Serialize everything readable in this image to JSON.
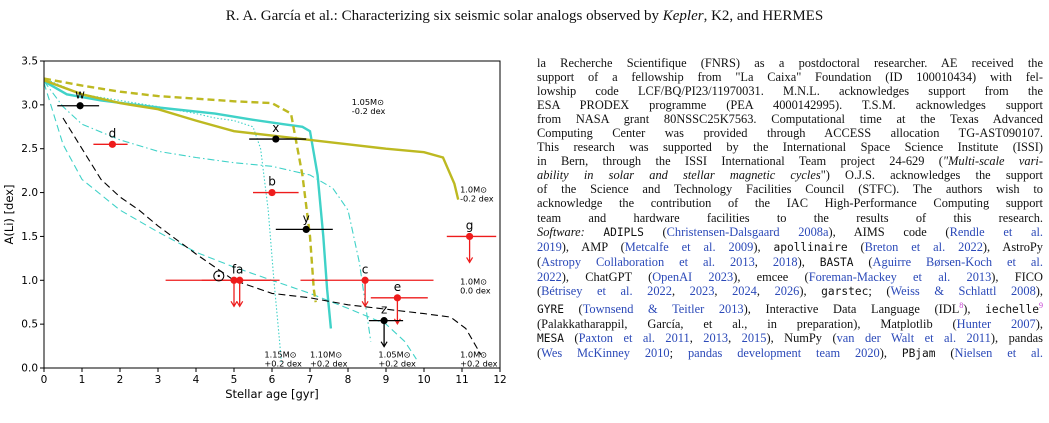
{
  "header": {
    "authors": "R. A. García et al.: Characterizing six seismic solar analogs observed by ",
    "kepler": "Kepler",
    "mid": ", K2, and HERMES"
  },
  "chart_data": {
    "type": "line",
    "xlabel": "Stellar age [gyr]",
    "ylabel": "A(Li) [dex]",
    "xlim": [
      0,
      12
    ],
    "ylim": [
      0,
      3.5
    ],
    "xticks": [
      "0",
      "1",
      "2",
      "3",
      "4",
      "5",
      "6",
      "7",
      "8",
      "9",
      "10",
      "11",
      "12"
    ],
    "yticks": [
      "0.0",
      "0.5",
      "1.0",
      "1.5",
      "2.0",
      "2.5",
      "3.0",
      "3.5"
    ],
    "colors": {
      "cyan": "#40d2c8",
      "olive": "#bdb921",
      "black": "#000000",
      "red": "#ee1c1c"
    },
    "tracks": [
      {
        "id": "cyan-solid",
        "color": "#40d2c8",
        "style": "solid",
        "width": 2.4,
        "points": [
          [
            0,
            3.27
          ],
          [
            0.6,
            3.12
          ],
          [
            1.5,
            3.05
          ],
          [
            3,
            2.97
          ],
          [
            4.5,
            2.9
          ],
          [
            5.5,
            2.83
          ],
          [
            6.3,
            2.78
          ],
          [
            6.8,
            2.75
          ],
          [
            7.0,
            2.7
          ],
          [
            7.2,
            2.2
          ],
          [
            7.35,
            1.5
          ],
          [
            7.45,
            0.9
          ],
          [
            7.55,
            0.45
          ]
        ]
      },
      {
        "id": "cyan-dashdot",
        "color": "#40d2c8",
        "style": "dashdot",
        "width": 1.1,
        "points": [
          [
            0,
            3.27
          ],
          [
            0.5,
            2.98
          ],
          [
            1,
            2.78
          ],
          [
            2,
            2.6
          ],
          [
            3,
            2.47
          ],
          [
            4,
            2.4
          ],
          [
            5,
            2.34
          ],
          [
            6,
            2.3
          ],
          [
            7,
            2.2
          ],
          [
            7.6,
            2.05
          ],
          [
            8.0,
            1.8
          ],
          [
            8.3,
            1.2
          ],
          [
            8.5,
            0.6
          ],
          [
            8.6,
            0.3
          ]
        ]
      },
      {
        "id": "cyan-dotted",
        "color": "#40d2c8",
        "style": "dotted",
        "width": 1.1,
        "points": [
          [
            0,
            3.3
          ],
          [
            1,
            3.12
          ],
          [
            2,
            3.05
          ],
          [
            3,
            2.98
          ],
          [
            4,
            2.9
          ],
          [
            4.5,
            2.85
          ],
          [
            5,
            2.82
          ],
          [
            5.5,
            2.75
          ],
          [
            5.7,
            2.5
          ],
          [
            5.9,
            1.8
          ],
          [
            6.05,
            1.0
          ],
          [
            6.2,
            0.3
          ],
          [
            6.25,
            0.05
          ]
        ]
      },
      {
        "id": "cyan-dashed",
        "color": "#40d2c8",
        "style": "dashed",
        "width": 1.1,
        "points": [
          [
            0,
            3.25
          ],
          [
            0.5,
            2.55
          ],
          [
            1,
            2.15
          ],
          [
            2,
            1.8
          ],
          [
            3,
            1.55
          ],
          [
            4,
            1.32
          ],
          [
            5,
            1.15
          ],
          [
            6,
            1.0
          ],
          [
            7,
            0.85
          ],
          [
            8,
            0.68
          ],
          [
            9,
            0.5
          ],
          [
            9.5,
            0.3
          ],
          [
            9.8,
            0.1
          ]
        ]
      },
      {
        "id": "olive-solid",
        "color": "#bdb921",
        "style": "solid",
        "width": 2.4,
        "points": [
          [
            0,
            3.28
          ],
          [
            1,
            3.12
          ],
          [
            2,
            3.02
          ],
          [
            3,
            2.95
          ],
          [
            4,
            2.82
          ],
          [
            5,
            2.7
          ],
          [
            6,
            2.65
          ],
          [
            7,
            2.6
          ],
          [
            8,
            2.55
          ],
          [
            9,
            2.5
          ],
          [
            10,
            2.46
          ],
          [
            10.5,
            2.4
          ],
          [
            10.8,
            2.1
          ],
          [
            10.9,
            1.92
          ]
        ]
      },
      {
        "id": "olive-dashed",
        "color": "#bdb921",
        "style": "dashed",
        "width": 2.4,
        "points": [
          [
            0,
            3.3
          ],
          [
            1,
            3.22
          ],
          [
            2,
            3.15
          ],
          [
            3,
            3.1
          ],
          [
            4,
            3.07
          ],
          [
            5,
            3.04
          ],
          [
            6,
            3.02
          ],
          [
            6.5,
            2.9
          ],
          [
            6.8,
            2.2
          ],
          [
            7.0,
            1.5
          ],
          [
            7.1,
            0.9
          ],
          [
            7.15,
            0.75
          ]
        ]
      },
      {
        "id": "black-dashed",
        "color": "#000000",
        "style": "dashed",
        "width": 1.1,
        "points": [
          [
            0.5,
            2.85
          ],
          [
            1,
            2.5
          ],
          [
            1.5,
            2.15
          ],
          [
            2,
            1.95
          ],
          [
            2.5,
            1.8
          ],
          [
            3,
            1.62
          ],
          [
            4,
            1.3
          ],
          [
            5,
            1.0
          ],
          [
            6,
            0.85
          ],
          [
            7,
            0.8
          ],
          [
            8,
            0.72
          ],
          [
            9,
            0.67
          ],
          [
            10,
            0.62
          ],
          [
            10.7,
            0.58
          ],
          [
            11.1,
            0.45
          ],
          [
            11.3,
            0.3
          ],
          [
            11.5,
            0.15
          ]
        ]
      }
    ],
    "sun": {
      "x": 4.6,
      "y": 1.05
    },
    "stars": [
      {
        "label": "w",
        "x": 0.95,
        "y": 2.99,
        "xerr": [
          0.6,
          0.5
        ],
        "color": "#000000",
        "arrow": false
      },
      {
        "label": "d",
        "x": 1.8,
        "y": 2.55,
        "xerr": [
          0.5,
          0.4
        ],
        "color": "#ee1c1c",
        "arrow": false
      },
      {
        "label": "x",
        "x": 6.1,
        "y": 2.61,
        "xerr": [
          0.7,
          0.8
        ],
        "color": "#000000",
        "arrow": false
      },
      {
        "label": "b",
        "x": 6.0,
        "y": 2.0,
        "xerr": [
          0.5,
          0.7
        ],
        "color": "#ee1c1c",
        "arrow": false
      },
      {
        "label": "y",
        "x": 6.9,
        "y": 1.58,
        "xerr": [
          0.8,
          0.7
        ],
        "color": "#000000",
        "arrow": false
      },
      {
        "label": "g",
        "x": 11.2,
        "y": 1.5,
        "xerr": [
          0.6,
          0.7
        ],
        "color": "#ee1c1c",
        "arrow": true
      },
      {
        "label": "f",
        "x": 5.0,
        "y": 1.0,
        "xerr": [
          1.8,
          1.2
        ],
        "color": "#ee1c1c",
        "arrow": true
      },
      {
        "label": "a",
        "x": 5.15,
        "y": 1.0,
        "xerr": [
          1.0,
          0.8
        ],
        "color": "#ee1c1c",
        "arrow": true
      },
      {
        "label": "c",
        "x": 8.45,
        "y": 1.0,
        "xerr": [
          1.7,
          1.8
        ],
        "color": "#ee1c1c",
        "arrow": true
      },
      {
        "label": "e",
        "x": 9.3,
        "y": 0.8,
        "xerr": [
          0.7,
          0.8
        ],
        "color": "#ee1c1c",
        "arrow": true
      },
      {
        "label": "z",
        "x": 8.95,
        "y": 0.54,
        "xerr": [
          0.4,
          0.5
        ],
        "color": "#000000",
        "arrow": true
      }
    ],
    "track_labels": [
      {
        "line1": "1.05M⊙",
        "line2": "-0.2 dex",
        "x": 8.1,
        "y": 3.0
      },
      {
        "line1": "1.0M⊙",
        "line2": "-0.2 dex",
        "x": 10.95,
        "y": 2.0
      },
      {
        "line1": "1.0M⊙",
        "line2": "0.0 dex",
        "x": 10.95,
        "y": 0.95
      },
      {
        "line1": "1.15M⊙",
        "line2": "+0.2 dex",
        "x": 5.8,
        "y": 0.12
      },
      {
        "line1": "1.10M⊙",
        "line2": "+0.2 dex",
        "x": 7.0,
        "y": 0.12
      },
      {
        "line1": "1.05M⊙",
        "line2": "+0.2 dex",
        "x": 8.8,
        "y": 0.12
      },
      {
        "line1": "1.0M⊙",
        "line2": "+0.2 dex",
        "x": 10.95,
        "y": 0.12
      }
    ]
  },
  "body_lines": [
    "la Recherche Scientifique (FNRS) as a postdoctoral researcher. AE received the",
    "support of a fellowship from \"La Caixa\" Foundation (ID 100010434) with fel-",
    "lowship code LCF/BQ/PI23/11970031. M.N.L. acknowledges support from the",
    "ESA PRODEX programme (PEA 4000142995). T.S.M. acknowledges support",
    "from NASA grant 80NSSC25K7563. Computational time at the Texas Advanced",
    "Computing Center was provided through ACCESS allocation TG-AST090107.",
    "This research was supported by the International Space Science Institute (ISSI)",
    "in Bern, through the ISSI International Team project 24-629 (",
    "ability in solar and stellar magnetic cycles",
    "\") O.J.S. acknowledges the support",
    "of the Science and Technology Facilities Council (STFC). The authors wish to",
    "acknowledge the contribution of the IAC High-Performance Computing support",
    "team and hardware facilities to the results of this research."
  ],
  "multi_scale_vari": "\"Multi-scale vari-",
  "software": {
    "label": "Software:",
    "line1": [
      {
        "t": " ",
        "k": "p"
      },
      {
        "t": "ADIPLS",
        "k": "m"
      },
      {
        "t": " (",
        "k": "p"
      },
      {
        "t": "Christensen-Dalsgaard 2008a",
        "k": "c"
      },
      {
        "t": "), AIMS code (",
        "k": "p"
      },
      {
        "t": "Rendle et al.",
        "k": "c"
      }
    ],
    "line2": [
      {
        "t": "2019",
        "k": "c"
      },
      {
        "t": "), AMP (",
        "k": "p"
      },
      {
        "t": "Metcalfe et al. 2009",
        "k": "c"
      },
      {
        "t": "), ",
        "k": "p"
      },
      {
        "t": "apollinaire",
        "k": "m"
      },
      {
        "t": " (",
        "k": "p"
      },
      {
        "t": "Breton et al. 2022",
        "k": "c"
      },
      {
        "t": "), AstroPy",
        "k": "p"
      }
    ],
    "line3": [
      {
        "t": "(",
        "k": "p"
      },
      {
        "t": "Astropy Collaboration et al. 2013",
        "k": "c"
      },
      {
        "t": ", ",
        "k": "p"
      },
      {
        "t": "2018",
        "k": "c"
      },
      {
        "t": "), ",
        "k": "p"
      },
      {
        "t": "BASTA",
        "k": "m"
      },
      {
        "t": " (",
        "k": "p"
      },
      {
        "t": "Aguirre Børsen-Koch et al.",
        "k": "c"
      }
    ],
    "line4": [
      {
        "t": "2022",
        "k": "c"
      },
      {
        "t": "), ChatGPT (",
        "k": "p"
      },
      {
        "t": "OpenAI 2023",
        "k": "c"
      },
      {
        "t": "), emcee (",
        "k": "p"
      },
      {
        "t": "Foreman-Mackey et al. 2013",
        "k": "c"
      },
      {
        "t": "), FICO",
        "k": "p"
      }
    ],
    "line5": [
      {
        "t": "(",
        "k": "p"
      },
      {
        "t": "Bétrisey et al. 2022",
        "k": "c"
      },
      {
        "t": ", ",
        "k": "p"
      },
      {
        "t": "2023",
        "k": "c"
      },
      {
        "t": ", ",
        "k": "p"
      },
      {
        "t": "2024",
        "k": "c"
      },
      {
        "t": ", ",
        "k": "p"
      },
      {
        "t": "2026",
        "k": "c"
      },
      {
        "t": "), ",
        "k": "p"
      },
      {
        "t": "garstec",
        "k": "m"
      },
      {
        "t": "; (",
        "k": "p"
      },
      {
        "t": "Weiss & Schlattl 2008",
        "k": "c"
      },
      {
        "t": "),",
        "k": "p"
      }
    ],
    "line6": [
      {
        "t": "GYRE",
        "k": "m"
      },
      {
        "t": " (",
        "k": "p"
      },
      {
        "t": "Townsend & Teitler 2013",
        "k": "c"
      },
      {
        "t": "), Interactive Data Language (IDL",
        "k": "p"
      },
      {
        "t": "8",
        "k": "s"
      },
      {
        "t": "), ",
        "k": "p"
      },
      {
        "t": "iechelle",
        "k": "m"
      },
      {
        "t": "9",
        "k": "s"
      }
    ],
    "line7": [
      {
        "t": "(Palakkatharappil, García, et al., in preparation), Matplotlib (",
        "k": "p"
      },
      {
        "t": "Hunter 2007",
        "k": "c"
      },
      {
        "t": "),",
        "k": "p"
      }
    ],
    "line8": [
      {
        "t": "MESA",
        "k": "m"
      },
      {
        "t": " (",
        "k": "p"
      },
      {
        "t": "Paxton et al. 2011",
        "k": "c"
      },
      {
        "t": ", ",
        "k": "p"
      },
      {
        "t": "2013",
        "k": "c"
      },
      {
        "t": ", ",
        "k": "p"
      },
      {
        "t": "2015",
        "k": "c"
      },
      {
        "t": "), NumPy (",
        "k": "p"
      },
      {
        "t": "van der Walt et al. 2011",
        "k": "c"
      },
      {
        "t": "), pandas",
        "k": "p"
      }
    ],
    "line9": [
      {
        "t": "(",
        "k": "p"
      },
      {
        "t": "Wes McKinney 2010",
        "k": "c"
      },
      {
        "t": "; ",
        "k": "p"
      },
      {
        "t": "pandas development team 2020",
        "k": "c"
      },
      {
        "t": "), ",
        "k": "p"
      },
      {
        "t": "PBjam",
        "k": "m"
      },
      {
        "t": " (",
        "k": "p"
      },
      {
        "t": "Nielsen et al.",
        "k": "c"
      }
    ]
  }
}
